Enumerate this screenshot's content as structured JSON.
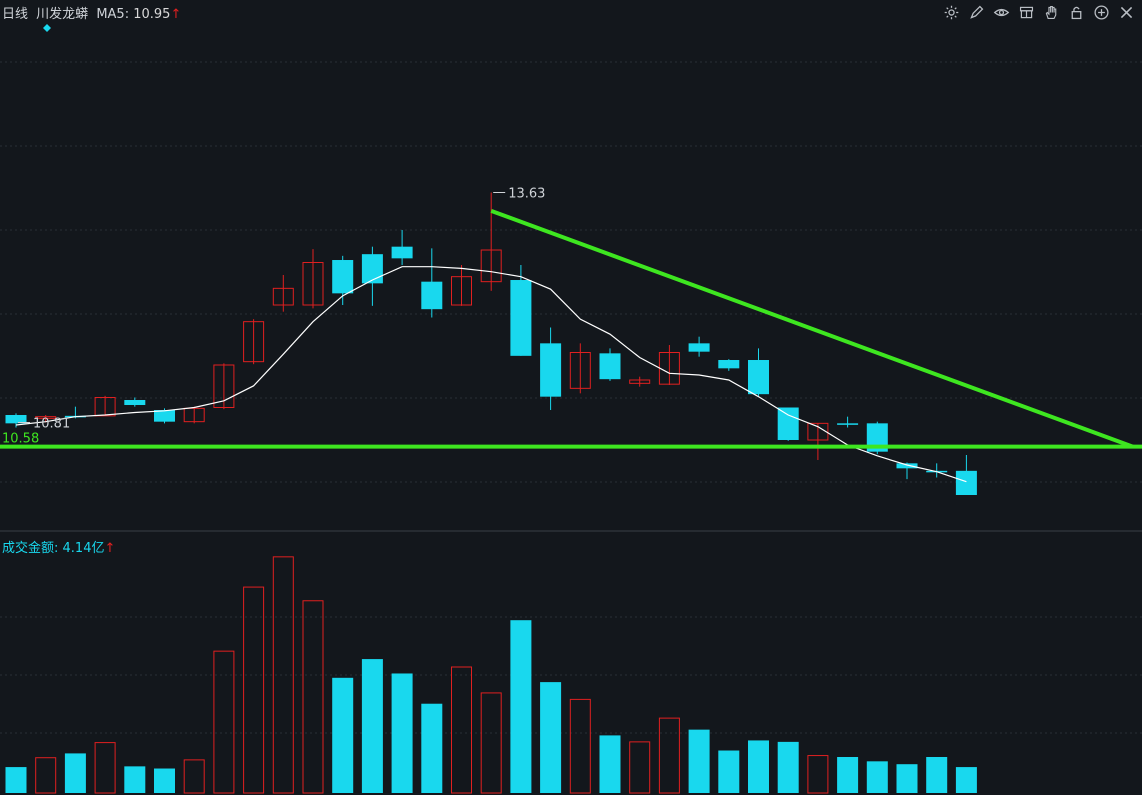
{
  "header": {
    "period": "日线",
    "stock_name": "川发龙蟒",
    "ma_label": "MA5:",
    "ma_value": "10.95",
    "up_arrow": "↑"
  },
  "volume_header": {
    "label": "成交金额:",
    "value": "4.14亿",
    "up_arrow": "↑"
  },
  "toolbar": {
    "icons": [
      "gear-icon",
      "pen-icon",
      "eye-icon",
      "layers-icon",
      "hand-icon",
      "lock-icon",
      "zoom-in-icon",
      "close-icon"
    ]
  },
  "annotations": {
    "high_label": "13.63",
    "low_label": "10.81",
    "support_label": "10.58"
  },
  "colors": {
    "background": "#13171c",
    "up": "#e02020",
    "down": "#19d8ee",
    "ma": "#ffffff",
    "trendline": "#3ee620",
    "support_label": "#3ee620",
    "ma_value": "#d8d8d8",
    "arrow": "#e02020",
    "grid": "#2a2f36",
    "text": "#cfd3d8",
    "volume_label": "#19d8ee"
  },
  "chart_data": {
    "type": "candlestick",
    "price_axis": {
      "ylim": [
        10.0,
        14.0
      ]
    },
    "candles": [
      {
        "open": 10.96,
        "close": 10.86,
        "high": 10.98,
        "low": 10.81
      },
      {
        "open": 10.92,
        "close": 10.94,
        "high": 10.96,
        "low": 10.87
      },
      {
        "open": 10.95,
        "close": 10.95,
        "high": 11.06,
        "low": 10.92
      },
      {
        "open": 10.95,
        "close": 11.17,
        "high": 11.19,
        "low": 10.95
      },
      {
        "open": 11.14,
        "close": 11.08,
        "high": 11.17,
        "low": 11.06
      },
      {
        "open": 11.02,
        "close": 10.88,
        "high": 11.04,
        "low": 10.86
      },
      {
        "open": 10.88,
        "close": 11.04,
        "high": 11.06,
        "low": 10.86
      },
      {
        "open": 11.05,
        "close": 11.56,
        "high": 11.58,
        "low": 11.03
      },
      {
        "open": 11.6,
        "close": 12.08,
        "high": 12.11,
        "low": 11.57
      },
      {
        "open": 12.28,
        "close": 12.48,
        "high": 12.64,
        "low": 12.2
      },
      {
        "open": 12.28,
        "close": 12.79,
        "high": 12.95,
        "low": 12.24
      },
      {
        "open": 12.82,
        "close": 12.42,
        "high": 12.87,
        "low": 12.28
      },
      {
        "open": 12.89,
        "close": 12.54,
        "high": 12.98,
        "low": 12.27
      },
      {
        "open": 12.98,
        "close": 12.84,
        "high": 13.18,
        "low": 12.76
      },
      {
        "open": 12.56,
        "close": 12.23,
        "high": 12.96,
        "low": 12.13
      },
      {
        "open": 12.28,
        "close": 12.62,
        "high": 12.76,
        "low": 12.27
      },
      {
        "open": 12.56,
        "close": 12.94,
        "high": 13.63,
        "low": 12.45
      },
      {
        "open": 12.58,
        "close": 11.67,
        "high": 12.76,
        "low": 11.67
      },
      {
        "open": 11.82,
        "close": 11.18,
        "high": 12.01,
        "low": 11.02
      },
      {
        "open": 11.28,
        "close": 11.71,
        "high": 11.82,
        "low": 11.22
      },
      {
        "open": 11.7,
        "close": 11.39,
        "high": 11.76,
        "low": 11.37
      },
      {
        "open": 11.34,
        "close": 11.38,
        "high": 11.42,
        "low": 11.3
      },
      {
        "open": 11.33,
        "close": 11.71,
        "high": 11.8,
        "low": 11.32
      },
      {
        "open": 11.82,
        "close": 11.72,
        "high": 11.9,
        "low": 11.66
      },
      {
        "open": 11.62,
        "close": 11.52,
        "high": 11.63,
        "low": 11.49
      },
      {
        "open": 11.62,
        "close": 11.21,
        "high": 11.76,
        "low": 11.19
      },
      {
        "open": 11.05,
        "close": 10.66,
        "high": 11.05,
        "low": 10.65
      },
      {
        "open": 10.66,
        "close": 10.86,
        "high": 10.86,
        "low": 10.42
      },
      {
        "open": 10.86,
        "close": 10.86,
        "high": 10.94,
        "low": 10.81
      },
      {
        "open": 10.86,
        "close": 10.52,
        "high": 10.88,
        "low": 10.49
      },
      {
        "open": 10.38,
        "close": 10.32,
        "high": 10.39,
        "low": 10.19
      },
      {
        "open": 10.29,
        "close": 10.29,
        "high": 10.38,
        "low": 10.21
      },
      {
        "open": 10.29,
        "close": 10.0,
        "high": 10.48,
        "low": 10.0
      }
    ],
    "ma5": [
      10.84,
      10.88,
      10.94,
      10.96,
      10.99,
      11.01,
      11.05,
      11.13,
      11.31,
      11.69,
      12.08,
      12.39,
      12.58,
      12.74,
      12.74,
      12.72,
      12.68,
      12.62,
      12.47,
      12.11,
      11.93,
      11.65,
      11.46,
      11.44,
      11.38,
      11.18,
      10.96,
      10.82,
      10.6,
      10.47,
      10.36,
      10.28,
      10.16
    ],
    "trendline": {
      "from": {
        "index": 16,
        "value": 13.41
      },
      "to": {
        "index": 37.6,
        "value": 10.58
      }
    },
    "support_level": 10.58,
    "volume": {
      "label": "成交金额",
      "values": [
        0.36,
        0.49,
        0.55,
        0.7,
        0.37,
        0.34,
        0.46,
        1.97,
        2.86,
        3.28,
        2.67,
        1.6,
        1.86,
        1.66,
        1.24,
        1.75,
        1.39,
        2.4,
        1.54,
        1.3,
        0.8,
        0.71,
        1.04,
        0.88,
        0.59,
        0.73,
        0.71,
        0.52,
        0.5,
        0.44,
        0.4,
        0.5,
        0.36
      ]
    }
  }
}
